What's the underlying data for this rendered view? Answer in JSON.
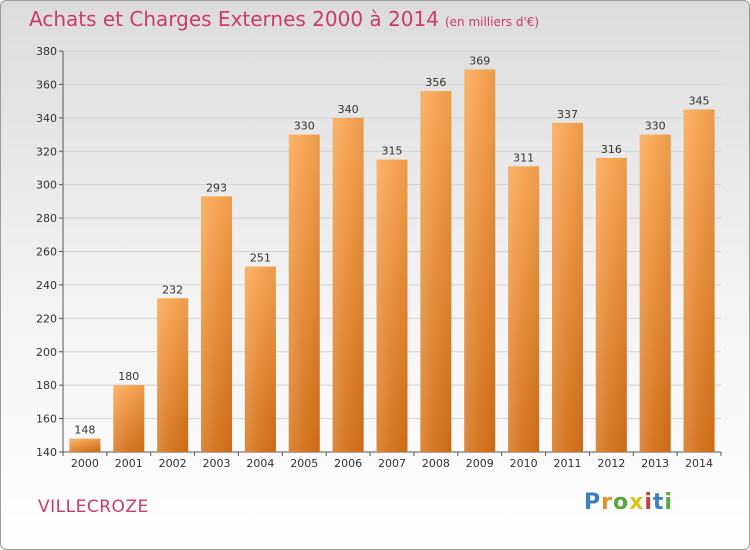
{
  "header": {
    "title": "Achats et Charges Externes 2000 à 2014",
    "subtitle": "(en milliers d'€)"
  },
  "commune": "VILLECROZE",
  "logo": {
    "text": "Proxiti",
    "letters": [
      "P",
      "r",
      "o",
      "x",
      "i",
      "t",
      "i"
    ],
    "colors": [
      "#3a7fc2",
      "#e0922a",
      "#5aa83c",
      "#d9c21d",
      "#c93d3d",
      "#3a7fc2",
      "#5aa83c"
    ]
  },
  "colors": {
    "bar": "#f0943c",
    "bar_dark": "#d9731b",
    "title": "#cc3b6a",
    "grid": "#cfcfcf"
  },
  "chart_data": {
    "type": "bar",
    "title": "Achats et Charges Externes 2000 à 2014",
    "xlabel": "",
    "ylabel": "",
    "categories": [
      "2000",
      "2001",
      "2002",
      "2003",
      "2004",
      "2005",
      "2006",
      "2007",
      "2008",
      "2009",
      "2010",
      "2011",
      "2012",
      "2013",
      "2014"
    ],
    "values": [
      148,
      180,
      232,
      293,
      251,
      330,
      340,
      315,
      356,
      369,
      311,
      337,
      316,
      330,
      345
    ],
    "ylim": [
      140,
      380
    ],
    "yticks": [
      140,
      160,
      180,
      200,
      220,
      240,
      260,
      280,
      300,
      320,
      340,
      360,
      380
    ]
  }
}
